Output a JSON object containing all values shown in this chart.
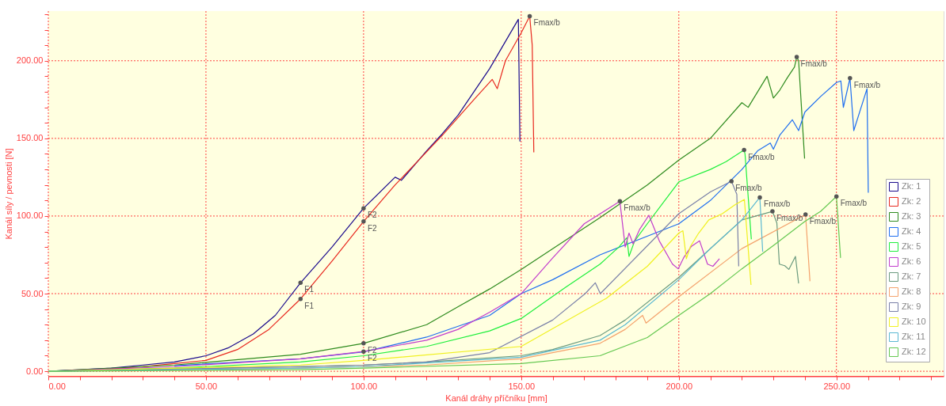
{
  "chart_data": {
    "type": "line",
    "xlabel": "Kanál dráhy příčníku  [mm]",
    "ylabel": "Kanál síly / pevnosti  [N]",
    "xlim": [
      0,
      284
    ],
    "ylim": [
      -3,
      232
    ],
    "xticks": [
      {
        "value": 0,
        "label": "0.00"
      },
      {
        "value": 10,
        "label": null
      },
      {
        "value": 20,
        "label": null
      },
      {
        "value": 30,
        "label": null
      },
      {
        "value": 40,
        "label": null
      },
      {
        "value": 50,
        "label": "50.00"
      },
      {
        "value": 60,
        "label": null
      },
      {
        "value": 70,
        "label": null
      },
      {
        "value": 80,
        "label": null
      },
      {
        "value": 90,
        "label": null
      },
      {
        "value": 100,
        "label": "100.00"
      },
      {
        "value": 110,
        "label": null
      },
      {
        "value": 120,
        "label": null
      },
      {
        "value": 130,
        "label": null
      },
      {
        "value": 140,
        "label": null
      },
      {
        "value": 150,
        "label": "150.00"
      },
      {
        "value": 160,
        "label": null
      },
      {
        "value": 170,
        "label": null
      },
      {
        "value": 180,
        "label": null
      },
      {
        "value": 190,
        "label": null
      },
      {
        "value": 200,
        "label": "200.00"
      },
      {
        "value": 210,
        "label": null
      },
      {
        "value": 220,
        "label": null
      },
      {
        "value": 230,
        "label": null
      },
      {
        "value": 240,
        "label": null
      },
      {
        "value": 250,
        "label": "250.00"
      },
      {
        "value": 260,
        "label": null
      },
      {
        "value": 270,
        "label": null
      },
      {
        "value": 280,
        "label": null
      }
    ],
    "yticks": [
      {
        "value": 0,
        "label": "0.00"
      },
      {
        "value": 10,
        "label": null
      },
      {
        "value": 20,
        "label": null
      },
      {
        "value": 30,
        "label": null
      },
      {
        "value": 40,
        "label": null
      },
      {
        "value": 50,
        "label": "50.00"
      },
      {
        "value": 60,
        "label": null
      },
      {
        "value": 70,
        "label": null
      },
      {
        "value": 80,
        "label": null
      },
      {
        "value": 90,
        "label": null
      },
      {
        "value": 100,
        "label": "100.00"
      },
      {
        "value": 110,
        "label": null
      },
      {
        "value": 120,
        "label": null
      },
      {
        "value": 130,
        "label": null
      },
      {
        "value": 140,
        "label": null
      },
      {
        "value": 150,
        "label": "150.00"
      },
      {
        "value": 160,
        "label": null
      },
      {
        "value": 170,
        "label": null
      },
      {
        "value": 180,
        "label": null
      },
      {
        "value": 190,
        "label": null
      },
      {
        "value": 200,
        "label": "200.00"
      },
      {
        "value": 210,
        "label": null
      },
      {
        "value": 220,
        "label": null
      },
      {
        "value": 230,
        "label": null
      }
    ],
    "grid": true,
    "legend": "bottom right",
    "series": [
      {
        "name": "Zk: 1",
        "color": "#1a0a8c",
        "x": [
          0,
          10,
          20,
          30,
          40,
          50,
          57,
          65,
          72,
          80,
          90,
          100,
          110,
          112,
          120,
          125,
          130,
          140,
          149.1,
          149.6
        ],
        "values": [
          0,
          1,
          2,
          4,
          6,
          10,
          15,
          24,
          36,
          57,
          80,
          105,
          125,
          123,
          142,
          153,
          165,
          195,
          226.7,
          148
        ]
      },
      {
        "name": "Zk: 2",
        "color": "#e8281e",
        "x": [
          0,
          10,
          20,
          30,
          40,
          50,
          60,
          70,
          80,
          90,
          100,
          110,
          125,
          135,
          140.8,
          142.4,
          145,
          150,
          152.7,
          153.5,
          154
        ],
        "values": [
          0,
          0.5,
          1.5,
          3,
          5,
          7,
          14,
          27,
          46.6,
          71,
          96.5,
          120,
          152,
          175,
          188,
          182,
          200,
          218,
          228.7,
          210,
          141
        ]
      },
      {
        "name": "Zk: 3",
        "color": "#2e8b1e",
        "x": [
          0,
          40,
          80,
          100,
          120,
          130,
          140,
          150,
          160,
          175,
          190,
          200,
          210,
          220,
          222,
          228,
          230,
          232,
          234.4,
          236.7,
          237.4,
          238,
          239.9
        ],
        "values": [
          0,
          4,
          11,
          18,
          30,
          41.6,
          53,
          65.6,
          79,
          99,
          120,
          136,
          150,
          173,
          170,
          190,
          176,
          181,
          189,
          196,
          202.4,
          200,
          137
        ]
      },
      {
        "name": "Zk: 4",
        "color": "#1e6ef0",
        "x": [
          40,
          80,
          100,
          120,
          140,
          150,
          160,
          175,
          200,
          210,
          220,
          225,
          229,
          230,
          232,
          236,
          238,
          240,
          245,
          250,
          251.4,
          252.2,
          254.3,
          255.5,
          259.7,
          260.1
        ],
        "values": [
          3.6,
          8,
          12.5,
          22,
          36,
          50,
          59,
          75,
          95,
          110,
          130,
          142,
          147,
          143,
          152,
          162,
          155,
          167,
          177,
          186,
          187,
          170,
          188.8,
          155,
          182,
          115
        ]
      },
      {
        "name": "Zk: 5",
        "color": "#1eef3c",
        "x": [
          0,
          40,
          80,
          100,
          120,
          140,
          150,
          164,
          175,
          181,
          183.5,
          184.2,
          186,
          190,
          200,
          210,
          215,
          220.7,
          221,
          223
        ],
        "values": [
          0,
          2,
          6,
          10,
          16,
          26,
          34,
          54,
          69,
          80,
          86,
          74,
          84,
          95,
          122,
          130,
          135,
          142.5,
          140,
          85
        ]
      },
      {
        "name": "Zk: 6",
        "color": "#c23ccc",
        "x": [
          0,
          40,
          80,
          100,
          120,
          130,
          140,
          150,
          160,
          170,
          181.3,
          183,
          184.2,
          185.5,
          187.6,
          190.5,
          193.8,
          198,
          199.8,
          201.5,
          204,
          206.6,
          209.1,
          210.8,
          212.9
        ],
        "values": [
          0,
          3,
          8,
          12.7,
          20,
          27,
          38,
          50,
          73,
          95,
          109.5,
          80,
          89,
          82,
          91.5,
          100.5,
          84,
          69,
          66,
          73,
          80.5,
          84,
          69,
          67.6,
          72.5
        ]
      },
      {
        "name": "Zk: 7",
        "color": "#6a9a7e",
        "x": [
          0,
          80,
          100,
          120,
          150,
          160,
          175,
          183,
          200,
          220,
          229.7,
          231.1,
          231.9,
          233.6,
          234.9,
          237,
          238
        ],
        "values": [
          0,
          3,
          4,
          6,
          10,
          14,
          23,
          33,
          60.5,
          97.5,
          103,
          95.5,
          69,
          68,
          65.6,
          74,
          56.6
        ]
      },
      {
        "name": "Zk: 8",
        "color": "#f4a26c",
        "x": [
          0,
          80,
          100,
          120,
          150,
          175,
          183,
          188.5,
          189.6,
          200,
          220,
          240.2,
          241.6
        ],
        "values": [
          0,
          2,
          3,
          4,
          8,
          18,
          27,
          36,
          31,
          48,
          79,
          101,
          58
        ]
      },
      {
        "name": "Zk: 9",
        "color": "#7a80a8",
        "x": [
          0,
          80,
          100,
          120,
          140,
          160,
          170.3,
          173.5,
          175.1,
          200,
          210,
          216.7,
          218.4,
          219
        ],
        "values": [
          0,
          3,
          4,
          6,
          12,
          33,
          50,
          57,
          50,
          101.5,
          115.5,
          122.4,
          114,
          67.6
        ]
      },
      {
        "name": "Zk: 10",
        "color": "#f0f01e",
        "x": [
          0,
          80,
          100,
          150,
          177,
          190,
          200,
          201.3,
          202.4,
          203.7,
          206.3,
          209.5,
          213.8,
          218,
          220.8,
          222.9
        ],
        "values": [
          0,
          4,
          7,
          16,
          47,
          67.6,
          89,
          90.5,
          72.5,
          80.5,
          89,
          97.5,
          101.5,
          107.5,
          110.6,
          55.6
        ]
      },
      {
        "name": "Zk: 11",
        "color": "#5ab8d2",
        "x": [
          0,
          80,
          100,
          150,
          175,
          183,
          200,
          210,
          220,
          225.7,
          226.6
        ],
        "values": [
          0,
          2,
          3,
          9,
          20,
          30,
          59,
          79,
          97.5,
          112,
          77
        ]
      },
      {
        "name": "Zk: 12",
        "color": "#64c850",
        "x": [
          0,
          80,
          100,
          150,
          175,
          190,
          200,
          210,
          220,
          230,
          240,
          245,
          250,
          251.3
        ],
        "values": [
          0,
          1,
          2,
          5,
          10,
          21.7,
          36,
          50,
          66,
          81,
          96.5,
          103,
          112.6,
          73
        ]
      }
    ],
    "annotations": [
      {
        "text": "F1",
        "x": 80,
        "y": 57
      },
      {
        "text": "F2",
        "x": 100,
        "y": 105
      },
      {
        "text": "F1",
        "x": 80,
        "y": 46.6
      },
      {
        "text": "F2",
        "x": 100,
        "y": 96.5
      },
      {
        "text": "F2",
        "x": 100,
        "y": 18
      },
      {
        "text": "F2",
        "x": 100,
        "y": 12.7
      },
      {
        "text": "Fmax/b",
        "x": 152.7,
        "y": 228.7
      },
      {
        "text": "Fmax/b",
        "x": 237.4,
        "y": 202.4
      },
      {
        "text": "Fmax/b",
        "x": 254.3,
        "y": 188.8
      },
      {
        "text": "Fmax/b",
        "x": 220.7,
        "y": 142.5
      },
      {
        "text": "Fmax/b",
        "x": 181.3,
        "y": 109.5
      },
      {
        "text": "Fmax/b",
        "x": 229.7,
        "y": 103
      },
      {
        "text": "Fmax/b",
        "x": 240.2,
        "y": 101
      },
      {
        "text": "Fmax/b",
        "x": 216.7,
        "y": 122.4
      },
      {
        "text": "Fmax/b",
        "x": 225.7,
        "y": 112
      },
      {
        "text": "Fmax/b",
        "x": 250,
        "y": 112.6
      }
    ]
  }
}
